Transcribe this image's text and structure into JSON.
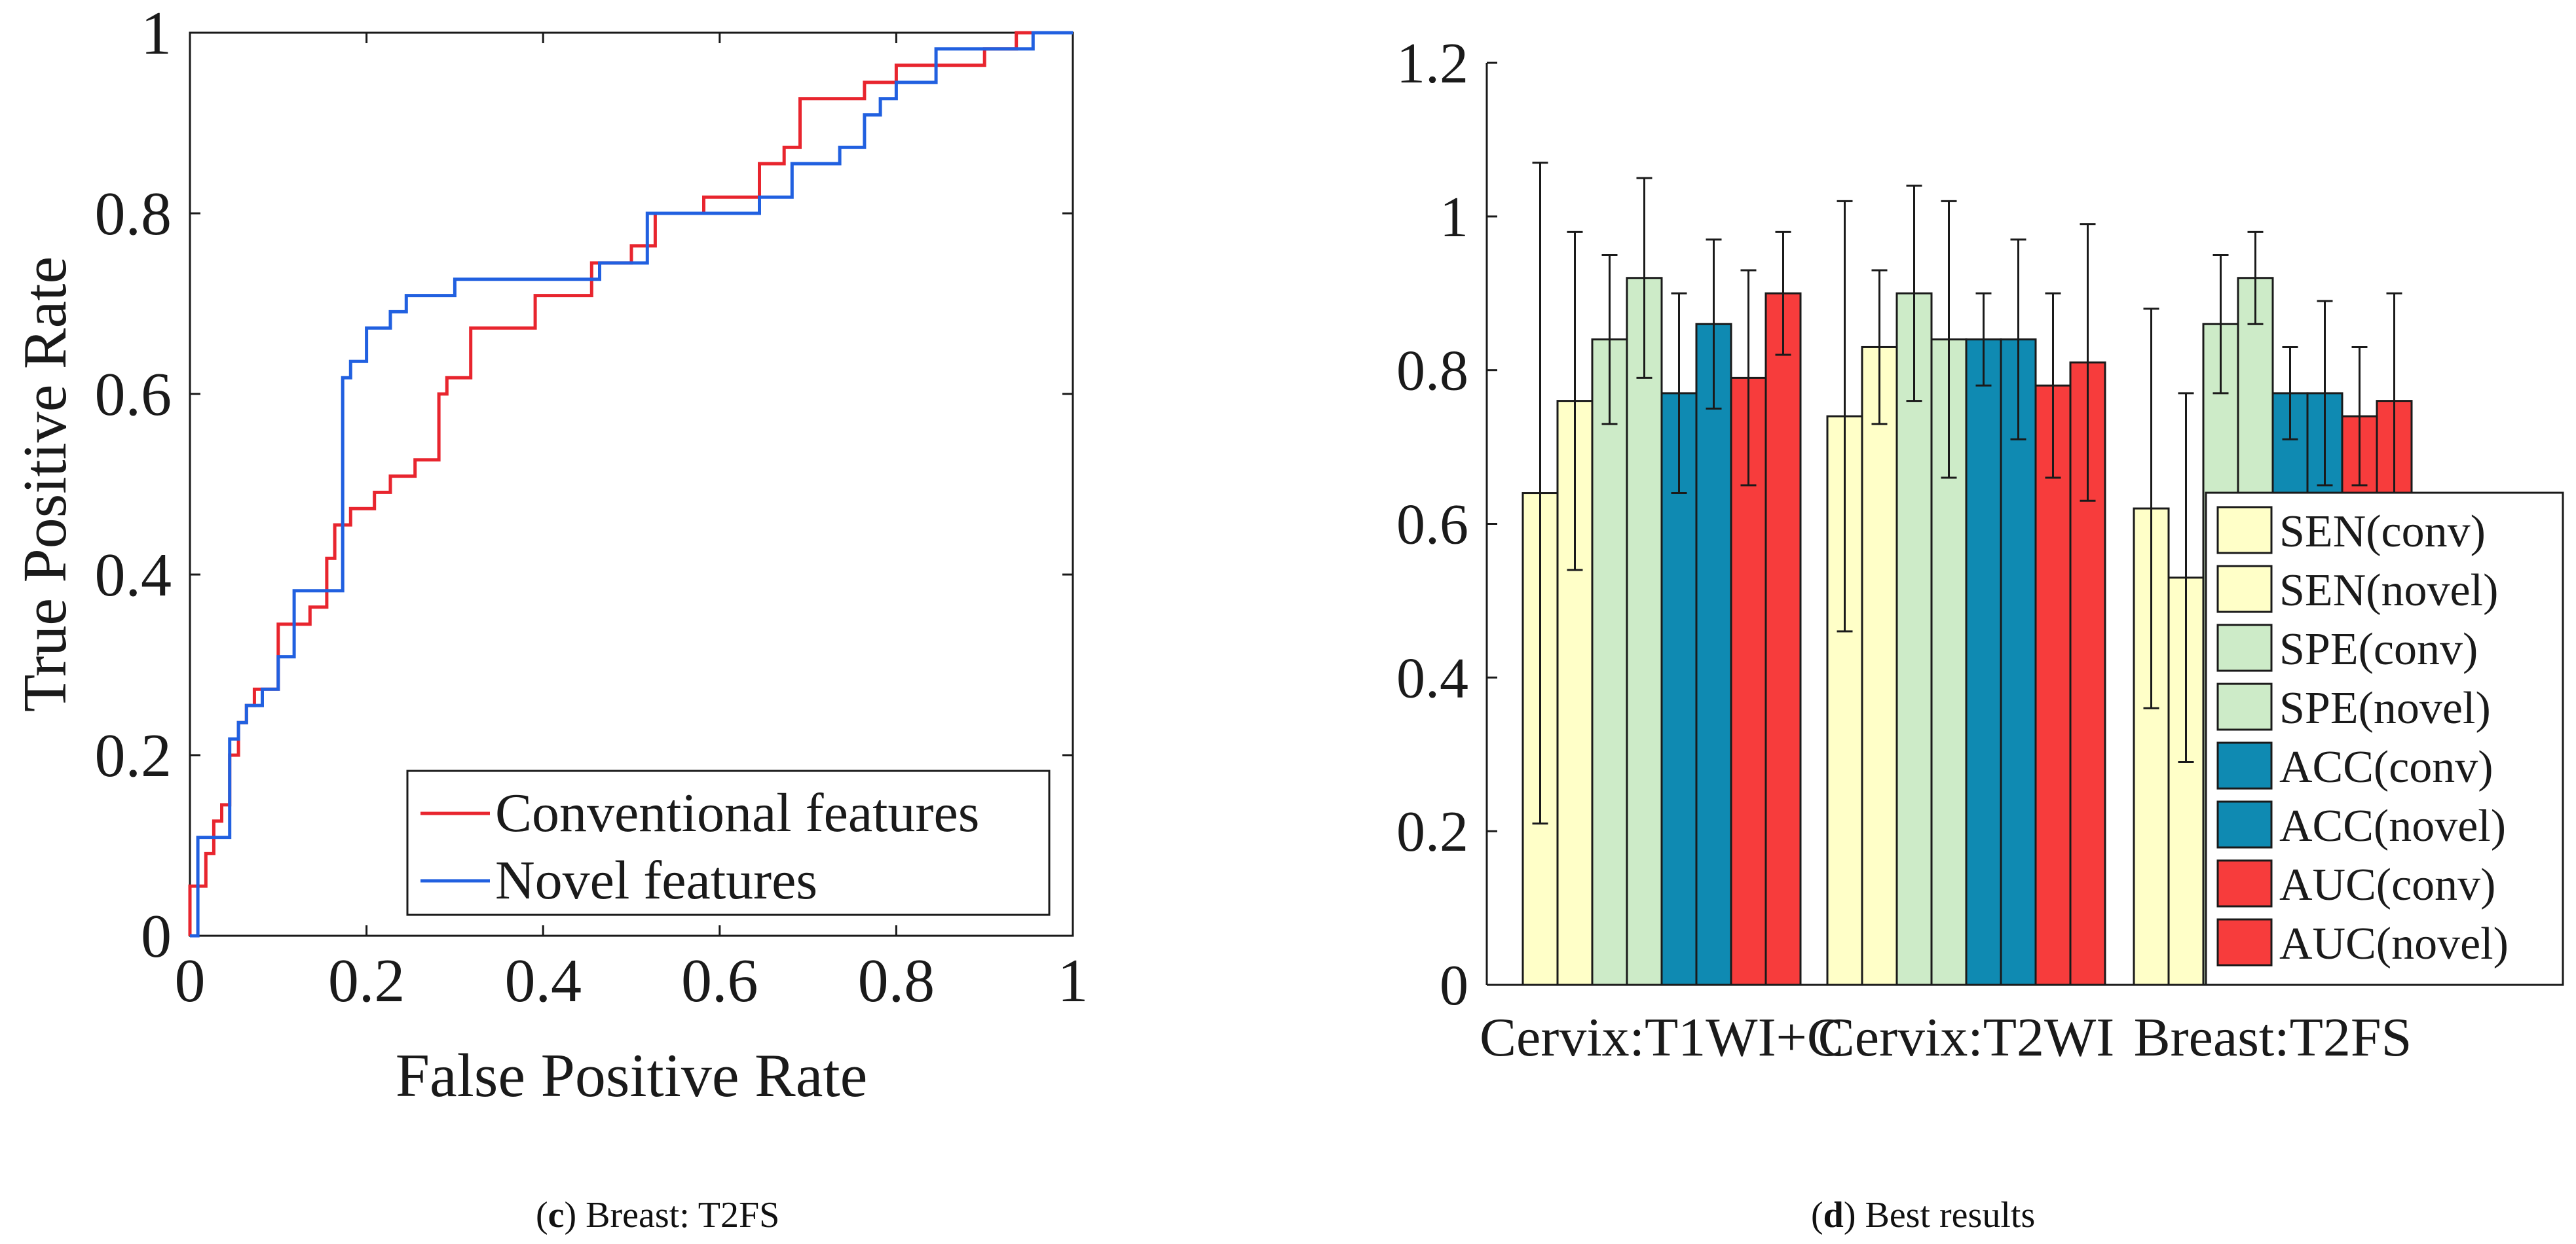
{
  "captions": {
    "left": {
      "letter": "c",
      "text": "Breast: T2FS"
    },
    "right": {
      "letter": "d",
      "text": "Best results"
    }
  },
  "chart_data": [
    {
      "type": "line",
      "title": "",
      "xlabel": "False Positive Rate",
      "ylabel": "True Positive Rate",
      "xlim": [
        0,
        1
      ],
      "ylim": [
        0,
        1
      ],
      "xticks": [
        "0",
        "0.2",
        "0.4",
        "0.6",
        "0.8",
        "1"
      ],
      "yticks": [
        "0",
        "0.2",
        "0.4",
        "0.6",
        "0.8",
        "1"
      ],
      "legend_position": "bottom-right",
      "series": [
        {
          "name": "Conventional features",
          "color": "#e8252e",
          "points": [
            [
              0,
              0
            ],
            [
              0,
              0.055
            ],
            [
              0.018,
              0.055
            ],
            [
              0.018,
              0.091
            ],
            [
              0.027,
              0.091
            ],
            [
              0.027,
              0.127
            ],
            [
              0.036,
              0.127
            ],
            [
              0.036,
              0.145
            ],
            [
              0.045,
              0.145
            ],
            [
              0.045,
              0.2
            ],
            [
              0.055,
              0.2
            ],
            [
              0.055,
              0.236
            ],
            [
              0.064,
              0.236
            ],
            [
              0.064,
              0.255
            ],
            [
              0.073,
              0.255
            ],
            [
              0.073,
              0.273
            ],
            [
              0.1,
              0.273
            ],
            [
              0.1,
              0.345
            ],
            [
              0.136,
              0.345
            ],
            [
              0.136,
              0.364
            ],
            [
              0.155,
              0.364
            ],
            [
              0.155,
              0.418
            ],
            [
              0.164,
              0.418
            ],
            [
              0.164,
              0.455
            ],
            [
              0.182,
              0.455
            ],
            [
              0.182,
              0.473
            ],
            [
              0.209,
              0.473
            ],
            [
              0.209,
              0.491
            ],
            [
              0.227,
              0.491
            ],
            [
              0.227,
              0.509
            ],
            [
              0.255,
              0.509
            ],
            [
              0.255,
              0.527
            ],
            [
              0.282,
              0.527
            ],
            [
              0.282,
              0.6
            ],
            [
              0.291,
              0.6
            ],
            [
              0.291,
              0.618
            ],
            [
              0.318,
              0.618
            ],
            [
              0.318,
              0.673
            ],
            [
              0.391,
              0.673
            ],
            [
              0.391,
              0.709
            ],
            [
              0.455,
              0.709
            ],
            [
              0.455,
              0.745
            ],
            [
              0.5,
              0.745
            ],
            [
              0.5,
              0.764
            ],
            [
              0.527,
              0.764
            ],
            [
              0.527,
              0.8
            ],
            [
              0.555,
              0.8
            ],
            [
              0.555,
              0.8
            ],
            [
              0.582,
              0.8
            ],
            [
              0.582,
              0.818
            ],
            [
              0.645,
              0.818
            ],
            [
              0.645,
              0.855
            ],
            [
              0.673,
              0.855
            ],
            [
              0.673,
              0.873
            ],
            [
              0.691,
              0.873
            ],
            [
              0.691,
              0.927
            ],
            [
              0.764,
              0.927
            ],
            [
              0.764,
              0.945
            ],
            [
              0.8,
              0.945
            ],
            [
              0.8,
              0.964
            ],
            [
              0.9,
              0.964
            ],
            [
              0.9,
              0.982
            ],
            [
              0.936,
              0.982
            ],
            [
              0.936,
              1
            ],
            [
              1,
              1
            ]
          ]
        },
        {
          "name": "Novel features",
          "color": "#2160e0",
          "points": [
            [
              0,
              0
            ],
            [
              0.009,
              0
            ],
            [
              0.009,
              0.109
            ],
            [
              0.045,
              0.109
            ],
            [
              0.045,
              0.218
            ],
            [
              0.055,
              0.218
            ],
            [
              0.055,
              0.236
            ],
            [
              0.064,
              0.236
            ],
            [
              0.064,
              0.255
            ],
            [
              0.082,
              0.255
            ],
            [
              0.082,
              0.273
            ],
            [
              0.1,
              0.273
            ],
            [
              0.1,
              0.309
            ],
            [
              0.118,
              0.309
            ],
            [
              0.118,
              0.382
            ],
            [
              0.173,
              0.382
            ],
            [
              0.173,
              0.618
            ],
            [
              0.182,
              0.618
            ],
            [
              0.182,
              0.636
            ],
            [
              0.2,
              0.636
            ],
            [
              0.2,
              0.673
            ],
            [
              0.227,
              0.673
            ],
            [
              0.227,
              0.691
            ],
            [
              0.245,
              0.691
            ],
            [
              0.245,
              0.709
            ],
            [
              0.3,
              0.709
            ],
            [
              0.3,
              0.727
            ],
            [
              0.464,
              0.727
            ],
            [
              0.464,
              0.745
            ],
            [
              0.518,
              0.745
            ],
            [
              0.518,
              0.8
            ],
            [
              0.645,
              0.8
            ],
            [
              0.645,
              0.818
            ],
            [
              0.682,
              0.818
            ],
            [
              0.682,
              0.855
            ],
            [
              0.736,
              0.855
            ],
            [
              0.736,
              0.873
            ],
            [
              0.764,
              0.873
            ],
            [
              0.764,
              0.909
            ],
            [
              0.782,
              0.909
            ],
            [
              0.782,
              0.927
            ],
            [
              0.8,
              0.927
            ],
            [
              0.8,
              0.945
            ],
            [
              0.845,
              0.945
            ],
            [
              0.845,
              0.982
            ],
            [
              0.955,
              0.982
            ],
            [
              0.955,
              1
            ],
            [
              1,
              1
            ]
          ]
        }
      ]
    },
    {
      "type": "bar",
      "title": "",
      "xlabel": "",
      "ylabel": "",
      "ylim": [
        0,
        1.2
      ],
      "yticks": [
        "0",
        "0.2",
        "0.4",
        "0.6",
        "0.8",
        "1",
        "1.2"
      ],
      "categories": [
        "Cervix:T1WI+C",
        "Cervix:T2WI",
        "Breast:T2FS"
      ],
      "legend_position": "right",
      "series": [
        {
          "name": "SEN(conv)",
          "color": "#ffffc8",
          "values": [
            0.64,
            0.74,
            0.62
          ],
          "err": [
            0.43,
            0.28,
            0.26
          ]
        },
        {
          "name": "SEN(novel)",
          "color": "#ffffc8",
          "values": [
            0.76,
            0.83,
            0.53
          ],
          "err": [
            0.22,
            0.1,
            0.24
          ]
        },
        {
          "name": "SPE(conv)",
          "color": "#cdebc8",
          "values": [
            0.84,
            0.9,
            0.86
          ],
          "err": [
            0.11,
            0.14,
            0.09
          ]
        },
        {
          "name": "SPE(novel)",
          "color": "#cdebc8",
          "values": [
            0.92,
            0.84,
            0.92
          ],
          "err": [
            0.13,
            0.18,
            0.06
          ]
        },
        {
          "name": "ACC(conv)",
          "color": "#0f8ab2",
          "values": [
            0.77,
            0.84,
            0.77
          ],
          "err": [
            0.13,
            0.06,
            0.06
          ]
        },
        {
          "name": "ACC(novel)",
          "color": "#0f8ab2",
          "values": [
            0.86,
            0.84,
            0.77
          ],
          "err": [
            0.11,
            0.13,
            0.12
          ]
        },
        {
          "name": "AUC(conv)",
          "color": "#f73c3c",
          "values": [
            0.79,
            0.78,
            0.74
          ],
          "err": [
            0.14,
            0.12,
            0.09
          ]
        },
        {
          "name": "AUC(novel)",
          "color": "#f73c3c",
          "values": [
            0.9,
            0.81,
            0.76
          ],
          "err": [
            0.08,
            0.18,
            0.14
          ]
        }
      ]
    }
  ]
}
